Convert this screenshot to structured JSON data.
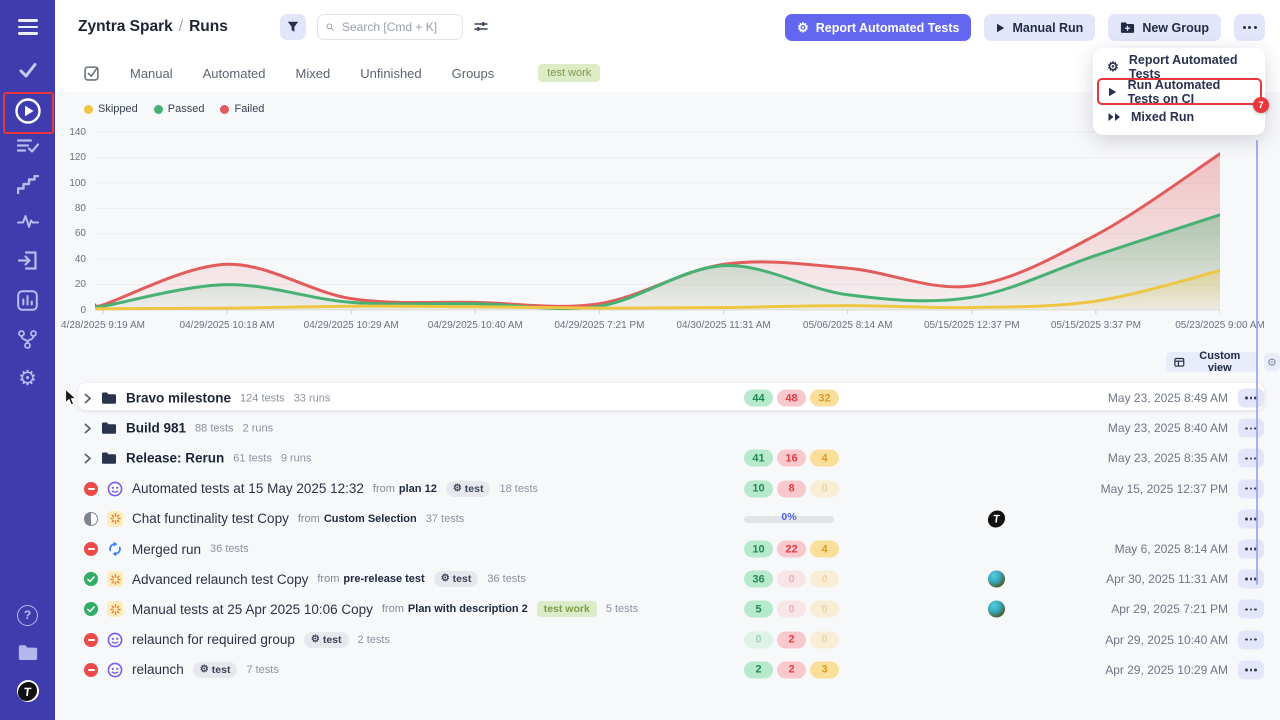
{
  "app": {
    "sidebar_color": "#3f3dad",
    "accent_color": "#6366f1",
    "annotation_color": "#e8373d",
    "logo_letter": "T"
  },
  "header": {
    "breadcrumb": {
      "project": "Zyntra Spark",
      "separator": "/",
      "current": "Runs"
    },
    "search": {
      "placeholder": "Search [Cmd + K]"
    },
    "buttons": {
      "report": "Report Automated Tests",
      "manual": "Manual Run",
      "new_group": "New Group"
    }
  },
  "tabs": {
    "items": [
      "Manual",
      "Automated",
      "Mixed",
      "Unfinished",
      "Groups"
    ],
    "tag": "test work"
  },
  "menu": {
    "items": [
      {
        "icon": "report-gear-icon",
        "label": "Report Automated Tests",
        "annotated": false
      },
      {
        "icon": "play-icon",
        "label": "Run Automated Tests on CI",
        "annotated": true
      },
      {
        "icon": "fast-forward-icon",
        "label": "Mixed Run",
        "annotated": false
      }
    ],
    "annotation_badge": "7"
  },
  "chart_data": {
    "type": "area",
    "title": "",
    "xlabel": "",
    "ylabel": "",
    "ylim": [
      0,
      140
    ],
    "yticks": [
      0,
      20,
      40,
      60,
      80,
      100,
      120,
      140
    ],
    "grid": true,
    "legend_position": "top-left",
    "x": [
      "4/28/2025 9:19 AM",
      "04/29/2025 10:18 AM",
      "04/29/2025 10:29 AM",
      "04/29/2025 10:40 AM",
      "04/29/2025 7:21 PM",
      "04/30/2025 11:31 AM",
      "05/06/2025 8:14 AM",
      "05/15/2025 12:37 PM",
      "05/15/2025 3:37 PM",
      "05/23/2025 9:00 AM"
    ],
    "series": [
      {
        "name": "Skipped",
        "color": "#eec643",
        "fill_opacity": 0.22,
        "values": [
          1,
          1.5,
          3,
          2.5,
          1.5,
          2,
          3.5,
          2,
          7,
          31
        ]
      },
      {
        "name": "Passed",
        "color": "#47b173",
        "fill_opacity": 0.27,
        "values": [
          3,
          20,
          6,
          5,
          3,
          35,
          12,
          10,
          43,
          75
        ]
      },
      {
        "name": "Failed",
        "color": "#e25c5c",
        "fill_opacity": 0.22,
        "values": [
          4,
          36,
          9,
          6,
          5,
          36,
          33,
          19,
          59,
          123
        ]
      }
    ]
  },
  "toolbar": {
    "custom_view": "Custom view"
  },
  "labels": {
    "from": "from"
  },
  "runs": [
    {
      "group": true,
      "highlight": true,
      "name": "Bravo milestone",
      "meta": [
        "124 tests",
        "33 runs"
      ],
      "badges": [
        {
          "value": "44",
          "faded": false
        },
        {
          "value": "48",
          "faded": false
        },
        {
          "value": "32",
          "faded": false
        }
      ],
      "date": "May 23, 2025 8:49 AM"
    },
    {
      "group": true,
      "name": "Build 981",
      "meta": [
        "88 tests",
        "2 runs"
      ],
      "badges": null,
      "date": "May 23, 2025 8:40 AM"
    },
    {
      "group": true,
      "name": "Release: Rerun",
      "meta": [
        "61 tests",
        "9 runs"
      ],
      "badges": [
        {
          "value": "41",
          "faded": false
        },
        {
          "value": "16",
          "faded": false
        },
        {
          "value": "4",
          "faded": false
        }
      ],
      "date": "May 23, 2025 8:35 AM"
    },
    {
      "status": "failed",
      "kind": "automated",
      "name": "Automated tests at 15 May 2025 12:32",
      "from": "plan 12",
      "tag": {
        "style": "gray",
        "label": "test"
      },
      "tests": "18 tests",
      "badges": [
        {
          "value": "10",
          "faded": false
        },
        {
          "value": "8",
          "faded": false
        },
        {
          "value": "0",
          "faded": true
        }
      ],
      "date": "May 15, 2025 12:37 PM"
    },
    {
      "status": "in_progress",
      "kind": "manual",
      "name": "Chat functinality test Copy",
      "from": "Custom Selection",
      "tests": "37 tests",
      "progress": "0%",
      "avatar": "testomat",
      "date": ""
    },
    {
      "status": "failed",
      "kind": "merged",
      "name": "Merged run",
      "tests": "36 tests",
      "badges": [
        {
          "value": "10",
          "faded": false
        },
        {
          "value": "22",
          "faded": false
        },
        {
          "value": "4",
          "faded": false
        }
      ],
      "date": "May 6, 2025 8:14 AM"
    },
    {
      "status": "passed",
      "kind": "manual",
      "name": "Advanced relaunch test Copy",
      "from": "pre-release test",
      "tag": {
        "style": "gray",
        "label": "test"
      },
      "tests": "36 tests",
      "badges": [
        {
          "value": "36",
          "faded": false
        },
        {
          "value": "0",
          "faded": true
        },
        {
          "value": "0",
          "faded": true
        }
      ],
      "avatar": "earth",
      "date": "Apr 30, 2025 11:31 AM"
    },
    {
      "status": "passed",
      "kind": "manual",
      "name": "Manual tests at 25 Apr 2025 10:06 Copy",
      "from": "Plan with description 2",
      "tag": {
        "style": "green",
        "label": "test work"
      },
      "tests": "5 tests",
      "badges": [
        {
          "value": "5",
          "faded": false
        },
        {
          "value": "0",
          "faded": true
        },
        {
          "value": "0",
          "faded": true
        }
      ],
      "avatar": "earth",
      "date": "Apr 29, 2025 7:21 PM"
    },
    {
      "status": "failed",
      "kind": "automated",
      "name": "relaunch for required group",
      "tag": {
        "style": "gray",
        "label": "test"
      },
      "tests": "2 tests",
      "badges": [
        {
          "value": "0",
          "faded": true
        },
        {
          "value": "2",
          "faded": false
        },
        {
          "value": "0",
          "faded": true
        }
      ],
      "date": "Apr 29, 2025 10:40 AM"
    },
    {
      "status": "failed",
      "kind": "automated",
      "name": "relaunch",
      "tag": {
        "style": "gray",
        "label": "test"
      },
      "tests": "7 tests",
      "badges": [
        {
          "value": "2",
          "faded": false
        },
        {
          "value": "2",
          "faded": false
        },
        {
          "value": "3",
          "faded": false
        }
      ],
      "date": "Apr 29, 2025 10:29 AM"
    }
  ]
}
